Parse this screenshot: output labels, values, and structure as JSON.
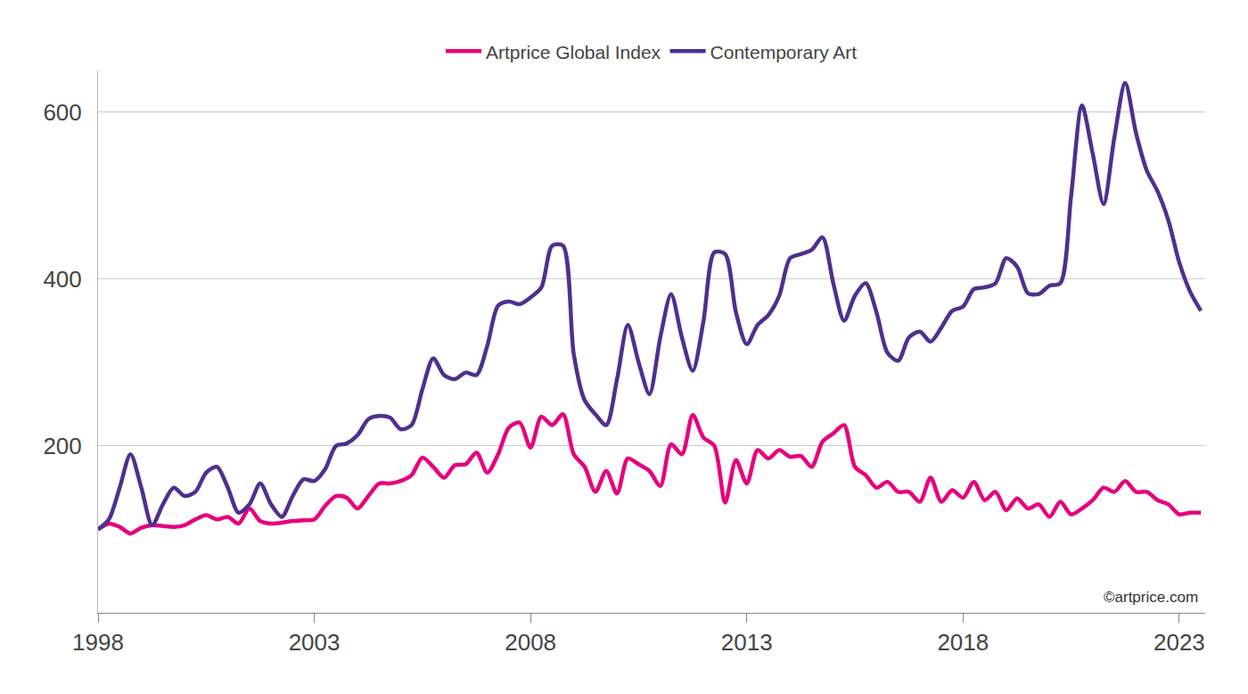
{
  "chart_data": {
    "type": "line",
    "x": [
      1998,
      1998.25,
      1998.5,
      1998.75,
      1999,
      1999.25,
      1999.5,
      1999.75,
      2000,
      2000.25,
      2000.5,
      2000.75,
      2001,
      2001.25,
      2001.5,
      2001.75,
      2002,
      2002.25,
      2002.5,
      2002.75,
      2003,
      2003.25,
      2003.5,
      2003.75,
      2004,
      2004.25,
      2004.5,
      2004.75,
      2005,
      2005.25,
      2005.5,
      2005.75,
      2006,
      2006.25,
      2006.5,
      2006.75,
      2007,
      2007.25,
      2007.5,
      2007.75,
      2008,
      2008.25,
      2008.5,
      2008.75,
      2009,
      2009.25,
      2009.5,
      2009.75,
      2010,
      2010.25,
      2010.5,
      2010.75,
      2011,
      2011.25,
      2011.5,
      2011.75,
      2012,
      2012.25,
      2012.5,
      2012.75,
      2013,
      2013.25,
      2013.5,
      2013.75,
      2014,
      2014.25,
      2014.5,
      2014.75,
      2015,
      2015.25,
      2015.5,
      2015.75,
      2016,
      2016.25,
      2016.5,
      2016.75,
      2017,
      2017.25,
      2017.5,
      2017.75,
      2018,
      2018.25,
      2018.5,
      2018.75,
      2019,
      2019.25,
      2019.5,
      2019.75,
      2020,
      2020.25,
      2020.5,
      2020.75,
      2021,
      2021.25,
      2021.5,
      2021.75,
      2022,
      2022.25,
      2022.5,
      2022.75,
      2023,
      2023.25,
      2023.5
    ],
    "series": [
      {
        "name": "Artprice Global Index",
        "color": "#e6007e",
        "line_style": "smooth",
        "values": [
          100,
          107,
          103,
          95,
          102,
          105,
          104,
          103,
          105,
          112,
          117,
          112,
          115,
          107,
          125,
          110,
          107,
          108,
          110,
          111,
          112,
          128,
          140,
          138,
          125,
          140,
          155,
          155,
          158,
          165,
          186,
          175,
          162,
          177,
          178,
          192,
          168,
          190,
          222,
          228,
          198,
          235,
          225,
          238,
          190,
          175,
          145,
          170,
          143,
          185,
          178,
          170,
          152,
          202,
          190,
          237,
          210,
          200,
          132,
          183,
          155,
          195,
          185,
          195,
          187,
          188,
          175,
          205,
          215,
          225,
          175,
          165,
          150,
          157,
          145,
          145,
          133,
          162,
          133,
          147,
          138,
          157,
          135,
          145,
          123,
          137,
          125,
          130,
          115,
          133,
          118,
          125,
          135,
          150,
          145,
          158,
          145,
          145,
          135,
          130,
          118,
          120,
          120
        ]
      },
      {
        "name": "Contemporary Art",
        "color": "#4f2f8f",
        "line_style": "smooth",
        "values": [
          100,
          112,
          150,
          190,
          150,
          105,
          130,
          150,
          140,
          145,
          168,
          175,
          150,
          120,
          130,
          155,
          130,
          115,
          140,
          160,
          158,
          172,
          200,
          203,
          213,
          232,
          236,
          234,
          220,
          225,
          268,
          305,
          285,
          280,
          288,
          285,
          320,
          368,
          373,
          370,
          378,
          390,
          440,
          440,
          310,
          255,
          238,
          225,
          280,
          345,
          300,
          262,
          330,
          382,
          330,
          290,
          350,
          432,
          430,
          360,
          322,
          345,
          357,
          380,
          425,
          430,
          435,
          450,
          395,
          350,
          380,
          395,
          360,
          312,
          302,
          330,
          337,
          325,
          342,
          362,
          367,
          388,
          390,
          395,
          425,
          415,
          383,
          382,
          392,
          395,
          500,
          608,
          550,
          490,
          570,
          635,
          575,
          530,
          505,
          470,
          420,
          385,
          362
        ]
      }
    ],
    "xlim": [
      1998,
      2023.6
    ],
    "xticks": [
      1998,
      2003,
      2008,
      2013,
      2018,
      2023
    ],
    "ylim": [
      0,
      650
    ],
    "yticks": [
      200,
      400,
      600
    ],
    "grid": true,
    "legend": "top",
    "annotations": [
      {
        "text": "©artprice.com"
      }
    ]
  }
}
